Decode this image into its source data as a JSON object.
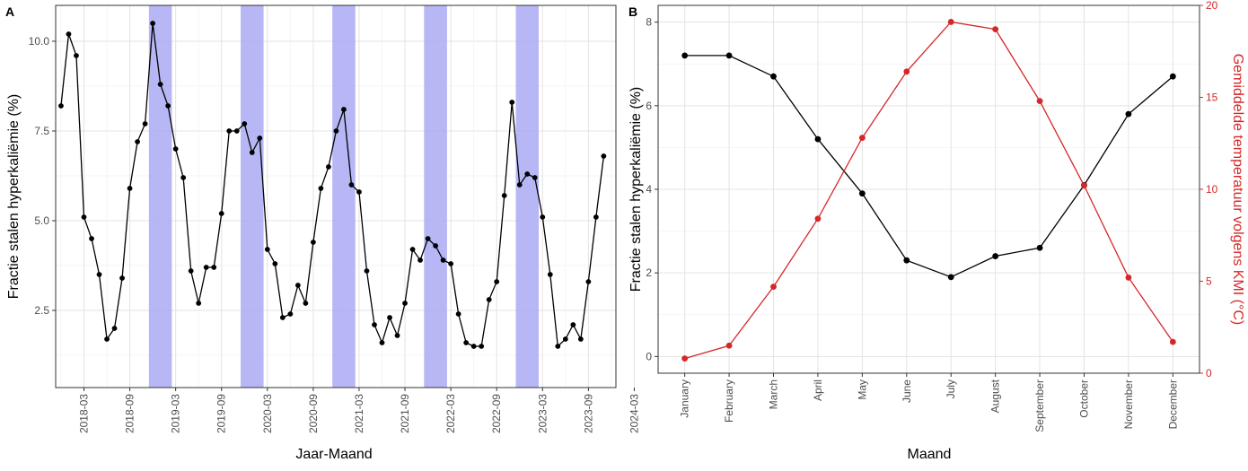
{
  "chart_data": [
    {
      "panel_label": "A",
      "type": "line",
      "title": "",
      "xlabel": "Jaar-Maand",
      "ylabel": "Fractie stalen hyperkaliëmie (%)",
      "x_tick_labels": [
        "2018-03",
        "2018-09",
        "2019-03",
        "2019-09",
        "2020-03",
        "2020-09",
        "2021-03",
        "2021-09",
        "2022-03",
        "2022-09",
        "2023-03",
        "2023-09",
        "2024-03"
      ],
      "y_tick_labels": [
        "2.5",
        "5.0",
        "7.5",
        "10.0"
      ],
      "y_ticks": [
        2.5,
        5.0,
        7.5,
        10.0
      ],
      "ylim": [
        0.35,
        11.0
      ],
      "x_start": "2017-12",
      "shaded_periods": [
        {
          "start": "2018-12",
          "end": "2019-02"
        },
        {
          "start": "2019-12",
          "end": "2020-02"
        },
        {
          "start": "2020-12",
          "end": "2021-02"
        },
        {
          "start": "2021-12",
          "end": "2022-02"
        },
        {
          "start": "2022-12",
          "end": "2023-02"
        }
      ],
      "shade_color": "#aaaaf5",
      "line_color": "#000000",
      "series": [
        {
          "name": "Fractie stalen hyperkaliëmie",
          "values": [
            8.2,
            10.2,
            9.6,
            5.1,
            4.5,
            3.5,
            1.7,
            2.0,
            3.4,
            5.9,
            7.2,
            7.7,
            10.5,
            8.8,
            8.2,
            7.0,
            6.2,
            3.6,
            2.7,
            3.7,
            3.7,
            5.2,
            7.5,
            7.5,
            7.7,
            6.9,
            7.3,
            4.2,
            3.8,
            2.3,
            2.4,
            3.2,
            2.7,
            4.4,
            5.9,
            6.5,
            7.5,
            8.1,
            6.0,
            5.8,
            3.6,
            2.1,
            1.6,
            2.3,
            1.8,
            2.7,
            4.2,
            3.9,
            4.5,
            4.3,
            3.9,
            3.8,
            2.4,
            1.6,
            1.5,
            1.5,
            2.8,
            3.3,
            5.7,
            8.3,
            6.0,
            6.3,
            6.2,
            5.1,
            3.5,
            1.5,
            1.7,
            2.1,
            1.7,
            3.3,
            5.1,
            6.8
          ]
        }
      ]
    },
    {
      "panel_label": "B",
      "type": "line",
      "title": "",
      "xlabel": "Maand",
      "ylabel": "Fractie stalen hyperkaliëmie (%)",
      "y2label": "Gemiddelde temperatuur volgens KMI (°C)",
      "categories": [
        "January",
        "February",
        "March",
        "April",
        "May",
        "June",
        "July",
        "August",
        "September",
        "October",
        "November",
        "December"
      ],
      "y_tick_labels": [
        "0",
        "2",
        "4",
        "6",
        "8"
      ],
      "y_ticks": [
        0,
        2,
        4,
        6,
        8
      ],
      "ylim": [
        -0.4,
        8.4
      ],
      "y2_tick_labels": [
        "0",
        "5",
        "10",
        "15",
        "20"
      ],
      "y2_ticks": [
        0,
        5,
        10,
        15,
        20
      ],
      "y2lim": [
        0,
        20
      ],
      "series": [
        {
          "name": "Fractie stalen hyperkaliëmie",
          "axis": "left",
          "color": "#000000",
          "values": [
            7.2,
            7.2,
            6.7,
            5.2,
            3.9,
            2.3,
            1.9,
            2.4,
            2.6,
            4.1,
            5.8,
            6.7
          ]
        },
        {
          "name": "Gemiddelde temperatuur volgens KMI",
          "axis": "right",
          "color": "#d62728",
          "values": [
            0.8,
            1.5,
            4.7,
            8.4,
            12.8,
            16.4,
            19.1,
            18.7,
            14.8,
            10.2,
            5.2,
            1.7
          ]
        }
      ]
    }
  ]
}
